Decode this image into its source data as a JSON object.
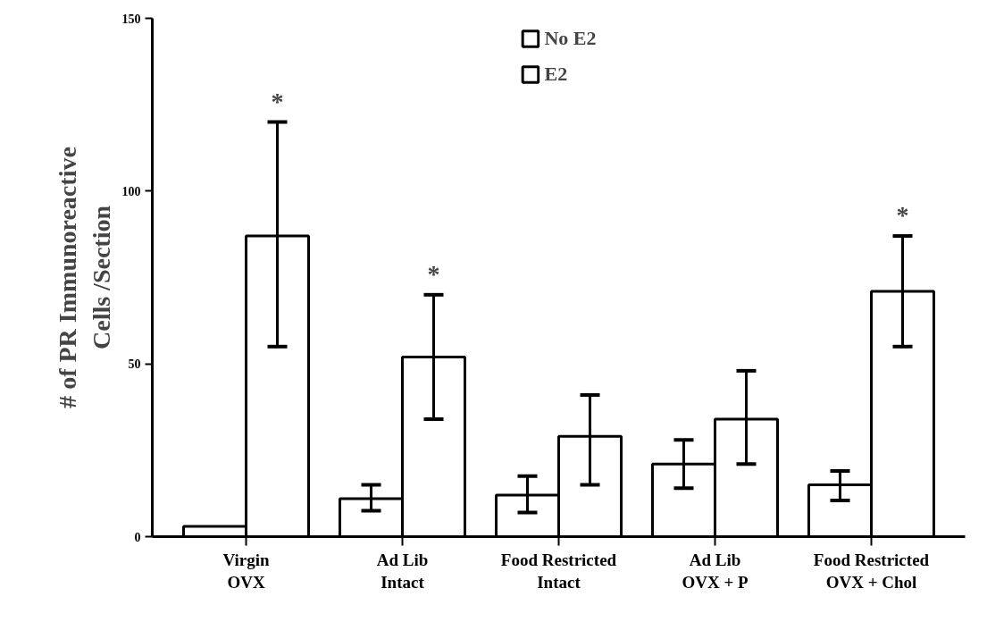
{
  "chart_data": {
    "type": "bar",
    "ylabel": "# of PR Immunoreactive\nCells /Section",
    "categories": [
      "Virgin\nOVX",
      "Ad Lib\nIntact",
      "Food Restricted\nIntact",
      "Ad Lib\nOVX + P",
      "Food Restricted\nOVX + Chol"
    ],
    "series": [
      {
        "name": "No E2",
        "color": "#ffffff",
        "values": [
          3,
          11,
          12,
          21,
          15
        ],
        "errors": [
          null,
          [
            7.5,
            15
          ],
          [
            7,
            17.5
          ],
          [
            14,
            28
          ],
          [
            10.5,
            19
          ]
        ]
      },
      {
        "name": "E2",
        "color": "#ffffff",
        "values": [
          87,
          52,
          29,
          34,
          71
        ],
        "errors": [
          [
            55,
            120
          ],
          [
            34,
            70
          ],
          [
            15,
            41
          ],
          [
            21,
            48
          ],
          [
            55,
            87
          ]
        ]
      }
    ],
    "annotations": [
      "*",
      "*",
      "*"
    ],
    "ylim": [
      0,
      150
    ],
    "yticks": [
      0,
      50,
      100,
      150
    ],
    "grid": false,
    "legend": "top"
  }
}
